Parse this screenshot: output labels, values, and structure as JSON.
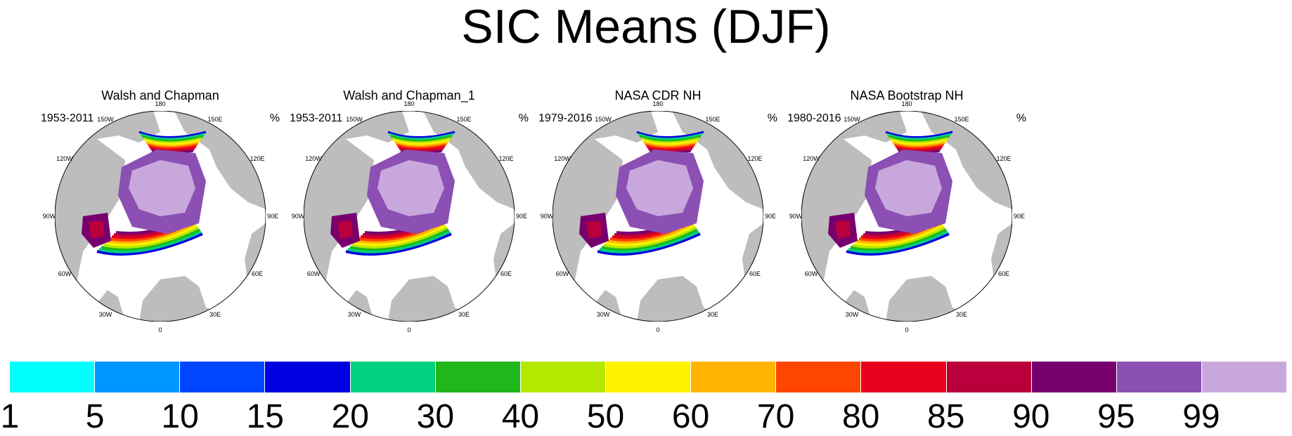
{
  "title": "SIC Means (DJF)",
  "panels": [
    {
      "name": "Walsh and Chapman",
      "period": "1953-2011",
      "units": "%"
    },
    {
      "name": "Walsh and Chapman_1",
      "period": "1953-2011",
      "units": "%"
    },
    {
      "name": "NASA CDR NH",
      "period": "1979-2016",
      "units": "%"
    },
    {
      "name": "NASA Bootstrap NH",
      "period": "1980-2016",
      "units": "%"
    }
  ],
  "map_labels": {
    "deg_180": "180",
    "w150": "150W",
    "e150": "150E",
    "w120": "120W",
    "e120": "120E",
    "w90": "90W",
    "e90": "90E",
    "w60": "60W",
    "e60": "60E",
    "w30": "30W",
    "e30": "30E",
    "deg_0": "0"
  },
  "colorbar": {
    "labels": [
      "1",
      "5",
      "10",
      "15",
      "20",
      "30",
      "40",
      "50",
      "60",
      "70",
      "80",
      "85",
      "90",
      "95",
      "99"
    ],
    "colors": [
      "#00ffff",
      "#0096ff",
      "#0046ff",
      "#0000e1",
      "#00d27f",
      "#20b71a",
      "#b4e800",
      "#fff200",
      "#ffb400",
      "#ff4600",
      "#e6001e",
      "#b9003c",
      "#78006e",
      "#8c50b4",
      "#c8a8dc"
    ]
  },
  "colors": {
    "land": "#bdbdbd",
    "ocean": "#ffffff",
    "ice_core": "#c8a8dc",
    "ice_edge": "#8c50b4"
  }
}
